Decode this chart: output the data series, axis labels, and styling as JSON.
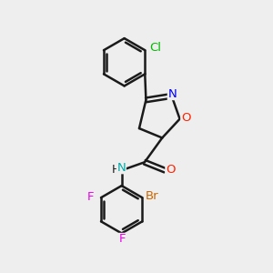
{
  "background_color": "#eeeeee",
  "bond_color": "#1a1a1a",
  "atom_colors": {
    "Cl": "#00bb00",
    "O": "#ff2200",
    "N_iso": "#0000ee",
    "N_amide": "#00aaaa",
    "H": "#1a1a1a",
    "Br": "#cc6600",
    "F": "#ee00ee",
    "C": "#1a1a1a"
  },
  "bond_width": 1.8,
  "fig_bg": "#eeeeee"
}
